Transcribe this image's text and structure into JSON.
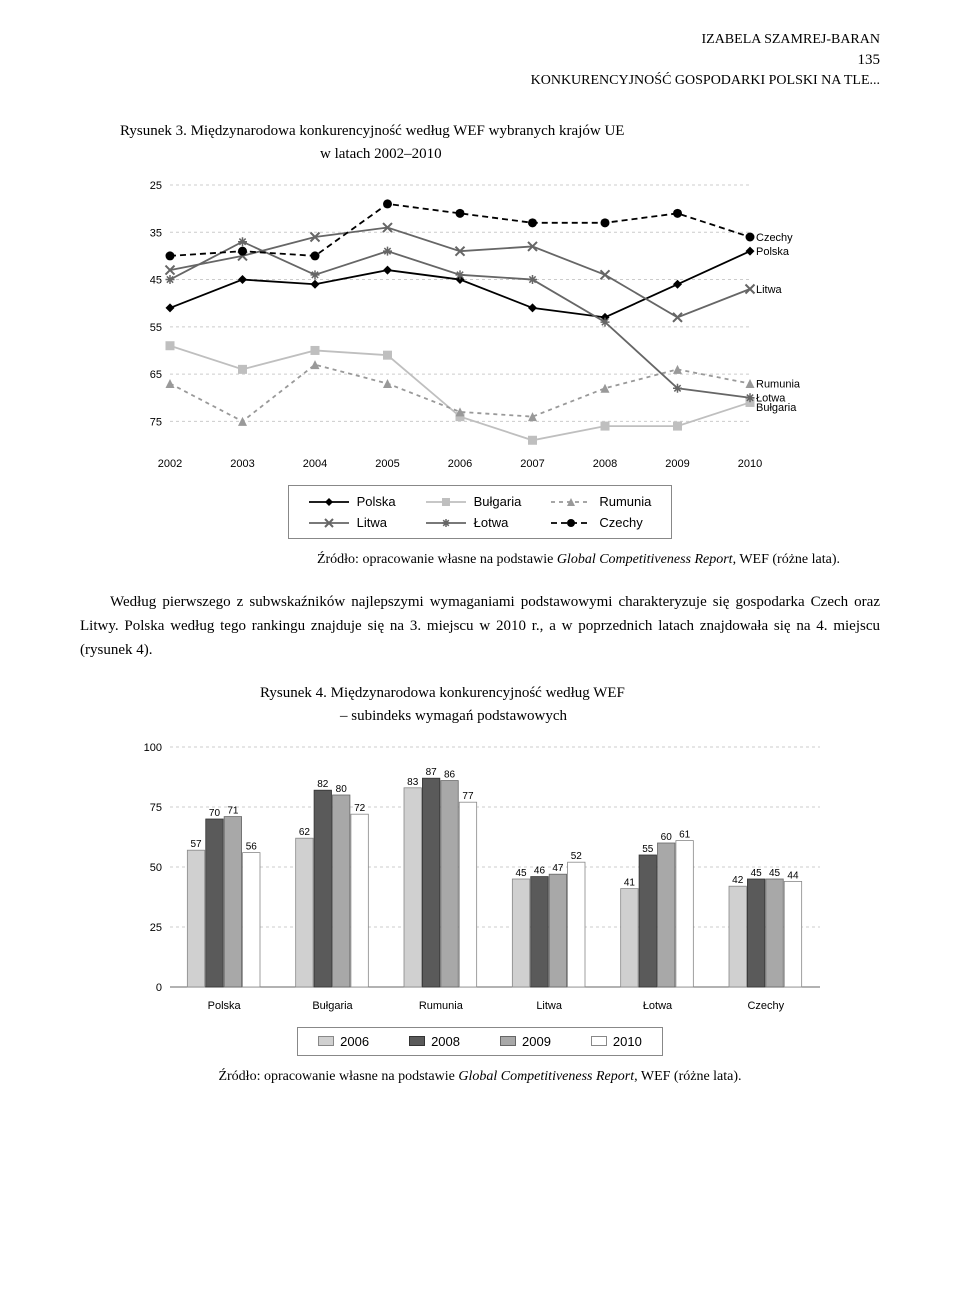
{
  "header": {
    "author": "IZABELA SZAMREJ-BARAN",
    "running_title": "KONKURENCYJNOŚĆ GOSPODARKI POLSKI NA TLE...",
    "page_number": "135"
  },
  "figure3": {
    "label": "Rysunek 3.",
    "title_line1": "Międzynarodowa konkurencyjność według WEF wybranych krajów UE",
    "title_line2": "w latach 2002–2010",
    "chart": {
      "type": "line",
      "years": [
        2002,
        2003,
        2004,
        2005,
        2006,
        2007,
        2008,
        2009,
        2010
      ],
      "ylim": [
        80,
        25
      ],
      "yticks": [
        25,
        35,
        45,
        55,
        65,
        75
      ],
      "series": [
        {
          "name": "Polska",
          "label_pl": "Polska",
          "color": "#000000",
          "marker": "diamond",
          "dash": "none",
          "values": [
            51,
            45,
            46,
            43,
            45,
            51,
            53,
            46,
            39
          ]
        },
        {
          "name": "Bulgaria",
          "label_pl": "Bułgaria",
          "color": "#bfbfbf",
          "marker": "square",
          "dash": "none",
          "values": [
            59,
            64,
            60,
            61,
            74,
            79,
            76,
            76,
            71
          ]
        },
        {
          "name": "Rumunia",
          "label_pl": "Rumunia",
          "color": "#999999",
          "marker": "triangle",
          "dash": "4,4",
          "values": [
            67,
            75,
            63,
            67,
            73,
            74,
            68,
            64,
            67
          ]
        },
        {
          "name": "Litwa",
          "label_pl": "Litwa",
          "color": "#666666",
          "marker": "x",
          "dash": "none",
          "values": [
            43,
            40,
            36,
            34,
            39,
            38,
            44,
            53,
            47
          ]
        },
        {
          "name": "Lotwa",
          "label_pl": "Łotwa",
          "color": "#666666",
          "marker": "star",
          "dash": "none",
          "values": [
            45,
            37,
            44,
            39,
            44,
            45,
            54,
            68,
            70
          ]
        },
        {
          "name": "Czechy",
          "label_pl": "Czechy",
          "color": "#000000",
          "marker": "circle",
          "dash": "6,4",
          "values": [
            40,
            39,
            40,
            29,
            31,
            33,
            33,
            31,
            36
          ]
        }
      ],
      "right_labels": [
        {
          "text": "Czechy",
          "y": 36
        },
        {
          "text": "Polska",
          "y": 39
        },
        {
          "text": "Litwa",
          "y": 47
        },
        {
          "text": "Rumunia",
          "y": 67
        },
        {
          "text": "Łotwa",
          "y": 70
        },
        {
          "text": "Bułgaria",
          "y": 72
        }
      ],
      "grid_color": "#cccccc",
      "axis_fontsize": 11
    },
    "source_label": "Źródło:",
    "source_text": "opracowanie własne na podstawie",
    "source_italic": "Global Competitiveness Report",
    "source_suffix": ", WEF (różne lata)."
  },
  "paragraph": "Według pierwszego z subwskaźników najlepszymi wymaganiami podstawowymi charakteryzuje się gospodarka Czech oraz Litwy. Polska według tego rankingu znajduje się na 3. miejscu w 2010 r., a w poprzednich latach znajdowała się na 4. miejscu (rysunek 4).",
  "figure4": {
    "label": "Rysunek 4.",
    "title_line1": "Międzynarodowa konkurencyjność według WEF",
    "title_line2": "– subindeks wymagań podstawowych",
    "chart": {
      "type": "grouped-bar",
      "categories": [
        "Polska",
        "Bułgaria",
        "Rumunia",
        "Litwa",
        "Łotwa",
        "Czechy"
      ],
      "years": [
        "2006",
        "2008",
        "2009",
        "2010"
      ],
      "year_colors": [
        "#d0d0d0",
        "#5a5a5a",
        "#a8a8a8",
        "#ffffff"
      ],
      "year_borders": [
        "#888",
        "#333",
        "#666",
        "#888"
      ],
      "ylim": [
        0,
        100
      ],
      "yticks": [
        0,
        25,
        50,
        75,
        100
      ],
      "values": {
        "Polska": [
          57,
          70,
          71,
          56
        ],
        "Bułgaria": [
          62,
          82,
          80,
          72
        ],
        "Rumunia": [
          83,
          87,
          86,
          77
        ],
        "Litwa": [
          45,
          46,
          47,
          52
        ],
        "Łotwa": [
          41,
          55,
          60,
          61
        ],
        "Czechy": [
          42,
          45,
          45,
          44
        ]
      },
      "grid_color": "#cccccc",
      "axis_fontsize": 11
    },
    "source_label": "Źródło:",
    "source_text": "opracowanie własne na podstawie",
    "source_italic": "Global Competitiveness Report",
    "source_suffix": ", WEF (różne lata)."
  }
}
